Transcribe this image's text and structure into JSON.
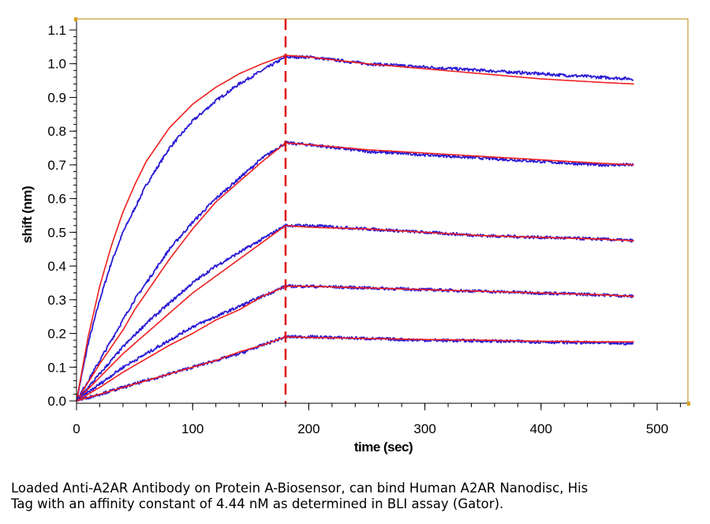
{
  "chart_data": {
    "type": "line",
    "xlabel": "time (sec)",
    "ylabel": "shift (nm)",
    "xlim": [
      0,
      530
    ],
    "ylim": [
      0,
      1.12
    ],
    "x_ticks": [
      0,
      100,
      200,
      300,
      400,
      500
    ],
    "x_tick_labels": [
      "0",
      "100",
      "200",
      "300",
      "400",
      "500"
    ],
    "y_ticks": [
      0.0,
      0.1,
      0.2,
      0.3,
      0.4,
      0.5,
      0.6,
      0.7,
      0.8,
      0.9,
      1.0,
      1.1
    ],
    "y_tick_labels": [
      "0.0",
      "0.1",
      "0.2",
      "0.3",
      "0.4",
      "0.5",
      "0.6",
      "0.7",
      "0.8",
      "0.9",
      "1.0",
      "1.1"
    ],
    "association_end": 180,
    "x_end": 480,
    "grid": false,
    "series": [
      {
        "kind": "measured",
        "x": [
          0,
          10,
          20,
          30,
          40,
          50,
          60,
          80,
          100,
          120,
          140,
          160,
          180,
          200,
          250,
          300,
          350,
          400,
          450,
          480
        ],
        "y": [
          0.0,
          0.17,
          0.3,
          0.41,
          0.5,
          0.57,
          0.64,
          0.75,
          0.83,
          0.89,
          0.94,
          0.98,
          1.02,
          1.02,
          1.0,
          0.99,
          0.98,
          0.97,
          0.96,
          0.955
        ]
      },
      {
        "kind": "fit",
        "x": [
          0,
          10,
          20,
          30,
          40,
          50,
          60,
          80,
          100,
          120,
          140,
          160,
          180,
          200,
          250,
          300,
          350,
          400,
          450,
          480
        ],
        "y": [
          0.0,
          0.19,
          0.34,
          0.46,
          0.56,
          0.64,
          0.71,
          0.81,
          0.88,
          0.93,
          0.97,
          1.0,
          1.025,
          1.02,
          1.0,
          0.985,
          0.97,
          0.955,
          0.945,
          0.94
        ]
      },
      {
        "kind": "measured",
        "x": [
          0,
          10,
          20,
          30,
          40,
          50,
          60,
          80,
          100,
          120,
          140,
          160,
          180,
          200,
          250,
          300,
          350,
          400,
          450,
          480
        ],
        "y": [
          0.0,
          0.06,
          0.12,
          0.18,
          0.24,
          0.3,
          0.35,
          0.45,
          0.53,
          0.6,
          0.66,
          0.72,
          0.765,
          0.76,
          0.74,
          0.73,
          0.72,
          0.71,
          0.7,
          0.7
        ]
      },
      {
        "kind": "fit",
        "x": [
          0,
          10,
          20,
          30,
          40,
          50,
          60,
          80,
          100,
          120,
          140,
          160,
          180,
          200,
          250,
          300,
          350,
          400,
          450,
          480
        ],
        "y": [
          0.0,
          0.055,
          0.11,
          0.16,
          0.21,
          0.27,
          0.32,
          0.42,
          0.51,
          0.59,
          0.65,
          0.71,
          0.765,
          0.76,
          0.745,
          0.735,
          0.725,
          0.715,
          0.705,
          0.7
        ]
      },
      {
        "kind": "measured",
        "x": [
          0,
          10,
          20,
          40,
          60,
          80,
          100,
          120,
          140,
          160,
          180,
          200,
          250,
          300,
          350,
          400,
          450,
          480
        ],
        "y": [
          0.0,
          0.04,
          0.08,
          0.16,
          0.23,
          0.29,
          0.35,
          0.4,
          0.44,
          0.48,
          0.52,
          0.52,
          0.51,
          0.5,
          0.49,
          0.485,
          0.48,
          0.475
        ]
      },
      {
        "kind": "fit",
        "x": [
          0,
          10,
          20,
          40,
          60,
          80,
          100,
          120,
          140,
          160,
          180,
          200,
          250,
          300,
          350,
          400,
          450,
          480
        ],
        "y": [
          0.0,
          0.035,
          0.07,
          0.14,
          0.2,
          0.26,
          0.32,
          0.37,
          0.42,
          0.47,
          0.52,
          0.515,
          0.51,
          0.5,
          0.49,
          0.485,
          0.48,
          0.475
        ]
      },
      {
        "kind": "measured",
        "x": [
          0,
          10,
          20,
          40,
          60,
          80,
          100,
          120,
          140,
          160,
          180,
          200,
          250,
          300,
          350,
          400,
          450,
          480
        ],
        "y": [
          0.0,
          0.025,
          0.05,
          0.1,
          0.14,
          0.18,
          0.22,
          0.25,
          0.28,
          0.31,
          0.34,
          0.34,
          0.335,
          0.33,
          0.325,
          0.32,
          0.315,
          0.31
        ]
      },
      {
        "kind": "fit",
        "x": [
          0,
          10,
          20,
          40,
          60,
          80,
          100,
          120,
          140,
          160,
          180,
          200,
          250,
          300,
          350,
          400,
          450,
          480
        ],
        "y": [
          0.0,
          0.02,
          0.04,
          0.085,
          0.125,
          0.165,
          0.2,
          0.24,
          0.27,
          0.31,
          0.34,
          0.34,
          0.335,
          0.33,
          0.325,
          0.32,
          0.315,
          0.31
        ]
      },
      {
        "kind": "measured",
        "x": [
          0,
          20,
          40,
          60,
          80,
          100,
          120,
          140,
          160,
          180,
          200,
          250,
          300,
          350,
          400,
          450,
          480
        ],
        "y": [
          0.0,
          0.02,
          0.04,
          0.06,
          0.08,
          0.1,
          0.12,
          0.14,
          0.165,
          0.19,
          0.19,
          0.185,
          0.18,
          0.178,
          0.175,
          0.172,
          0.17
        ]
      },
      {
        "kind": "fit",
        "x": [
          0,
          20,
          40,
          60,
          80,
          100,
          120,
          140,
          160,
          180,
          200,
          250,
          300,
          350,
          400,
          450,
          480
        ],
        "y": [
          0.0,
          0.02,
          0.04,
          0.06,
          0.08,
          0.1,
          0.12,
          0.145,
          0.165,
          0.19,
          0.188,
          0.185,
          0.182,
          0.18,
          0.177,
          0.175,
          0.175
        ]
      }
    ],
    "colors": {
      "measured": "#2a1bd6",
      "fit": "#f01e1e",
      "divider": "#e01010",
      "frame": "#b8860b",
      "tick_mark": "#d4a017"
    }
  },
  "caption": "Loaded Anti-A2AR Antibody on Protein A-Biosensor, can bind Human A2AR Nanodisc, His\nTag with an affinity constant of 4.44 nM as determined in BLI assay (Gator)."
}
